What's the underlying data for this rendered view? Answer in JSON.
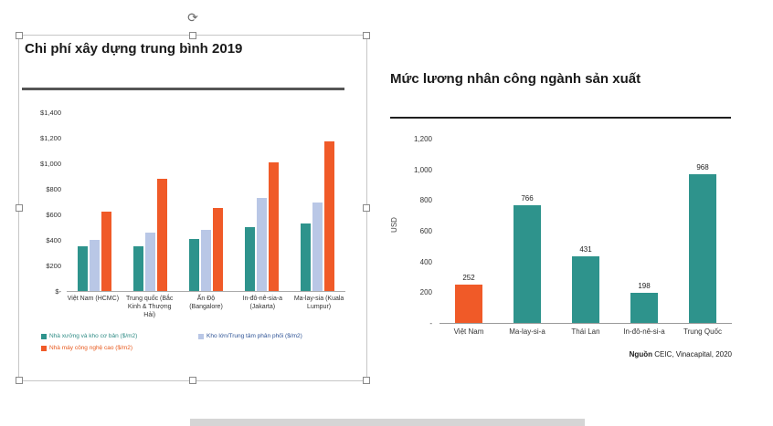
{
  "chart_data": [
    {
      "type": "bar",
      "title": "Chi phí xây dựng trung bình 2019",
      "categories": [
        "Việt Nam (HCMC)",
        "Trung quốc (Bắc Kinh & Thượng Hải)",
        "Ấn Độ (Bangalore)",
        "In-đô-nê-sia-a (Jakarta)",
        "Ma-lay-sia (Kuala Lumpur)"
      ],
      "series": [
        {
          "name": "Nhà xưởng và kho cơ bản ($/m2)",
          "color": "#2E938C",
          "legend_text_color": "#2E8B84",
          "values": [
            350,
            350,
            410,
            500,
            530
          ]
        },
        {
          "name": "Kho lớn/Trung tâm phân phối ($/m2)",
          "color": "#B9C7E6",
          "legend_text_color": "#2F5496",
          "values": [
            400,
            455,
            480,
            730,
            690
          ]
        },
        {
          "name": "Nhà máy công nghệ cao ($/m2)",
          "color": "#F05A28",
          "legend_text_color": "#E8591D",
          "values": [
            620,
            880,
            650,
            1010,
            1170
          ]
        }
      ],
      "ylim": [
        0,
        1400
      ],
      "yticks": [
        "$1,400",
        "$1,200",
        "$1,000",
        "$800",
        "$600",
        "$400",
        "$200",
        "$-"
      ],
      "ytick_values": [
        1400,
        1200,
        1000,
        800,
        600,
        400,
        200,
        0
      ],
      "legend_position": "bottom",
      "grid": false
    },
    {
      "type": "bar",
      "title": "Mức lương nhân công ngành sản xuất",
      "ylabel": "USD",
      "categories": [
        "Việt Nam",
        "Ma-lay-si-a",
        "Thái Lan",
        "In-đô-nê-si-a",
        "Trung Quốc"
      ],
      "values": [
        252,
        766,
        431,
        198,
        968
      ],
      "value_labels": [
        "252",
        "766",
        "431",
        "198",
        "968"
      ],
      "bar_colors": [
        "#F05A28",
        "#2E938C",
        "#2E938C",
        "#2E938C",
        "#2E938C"
      ],
      "ylim": [
        0,
        1200
      ],
      "yticks": [
        "1,200",
        "1,000",
        "800",
        "600",
        "400",
        "200",
        "-"
      ],
      "ytick_values": [
        1200,
        1000,
        800,
        600,
        400,
        200,
        0
      ],
      "source_bold": "Nguồn",
      "source_rest": " CEIC, Vinacapital, 2020",
      "legend_position": "none",
      "grid": false
    }
  ],
  "editor": {
    "rotate_glyph": "⟳"
  }
}
